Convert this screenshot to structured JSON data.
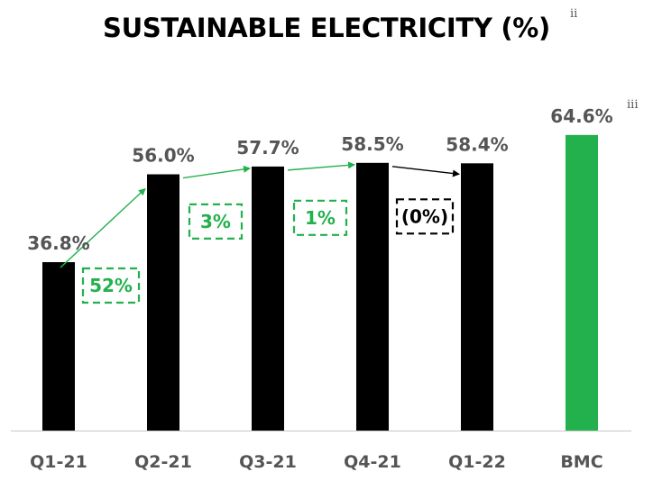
{
  "chart_data": {
    "type": "bar",
    "title": "SUSTAINABLE ELECTRICITY (%)",
    "title_note": "ii",
    "categories": [
      "Q1-21",
      "Q2-21",
      "Q3-21",
      "Q4-21",
      "Q1-22",
      "BMC"
    ],
    "values": [
      36.8,
      56.0,
      57.7,
      58.5,
      58.4,
      64.6
    ],
    "value_labels": [
      "36.8%",
      "56.0%",
      "57.7%",
      "58.5%",
      "58.4%",
      "64.6%"
    ],
    "value_notes": [
      "",
      "",
      "",
      "",
      "",
      "iii"
    ],
    "bar_colors": [
      "#000000",
      "#000000",
      "#000000",
      "#000000",
      "#000000",
      "#22b14c"
    ],
    "change_labels": [
      {
        "from": "Q1-21",
        "to": "Q2-21",
        "label": "52%",
        "color": "#22b14c"
      },
      {
        "from": "Q2-21",
        "to": "Q3-21",
        "label": "3%",
        "color": "#22b14c"
      },
      {
        "from": "Q3-21",
        "to": "Q4-21",
        "label": "1%",
        "color": "#22b14c"
      },
      {
        "from": "Q4-21",
        "to": "Q1-22",
        "label": "(0%)",
        "color": "#000000"
      }
    ],
    "ylim": [
      0,
      70
    ],
    "xlabel": "",
    "ylabel": "",
    "grid": false,
    "legend": "none"
  }
}
